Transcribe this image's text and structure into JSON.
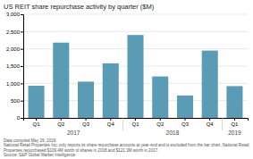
{
  "chart_data": {
    "type": "bar",
    "title": "US REIT share repurchase activity by quarter ($M)",
    "categories": [
      "Q1",
      "Q2",
      "Q3",
      "Q4",
      "Q1",
      "Q2",
      "Q3",
      "Q4",
      "Q1"
    ],
    "values": [
      930,
      2180,
      1050,
      1580,
      2400,
      1200,
      650,
      1950,
      920
    ],
    "color": "#5a9bb5",
    "ylim": [
      0,
      3000
    ],
    "yticks": [
      0,
      500,
      {
        "value": 1000,
        "label": "1,000"
      },
      {
        "value": 1500,
        "label": "1,500"
      },
      {
        "value": 2000,
        "label": "2,000"
      },
      {
        "value": 2500,
        "label": "2,500"
      },
      {
        "value": 3000,
        "label": "3,000"
      }
    ],
    "grid": true,
    "annotations": [
      {
        "text": "2017",
        "span": [
          0,
          3
        ]
      },
      {
        "text": "2018",
        "span": [
          4,
          7
        ]
      },
      {
        "text": "2019",
        "span": [
          8,
          8
        ]
      }
    ],
    "footnote": [
      "Data compiled May 29, 2019.",
      "National Retail Properties Inc. only reports its share repurchase amounts at year-end and is excluded from the bar chart. National Retail",
      "Properties repurchased $109.4M worth of shares in 2018 and $121.3M worth in 2017.",
      "Source: S&P Global Market Intelligence"
    ]
  }
}
